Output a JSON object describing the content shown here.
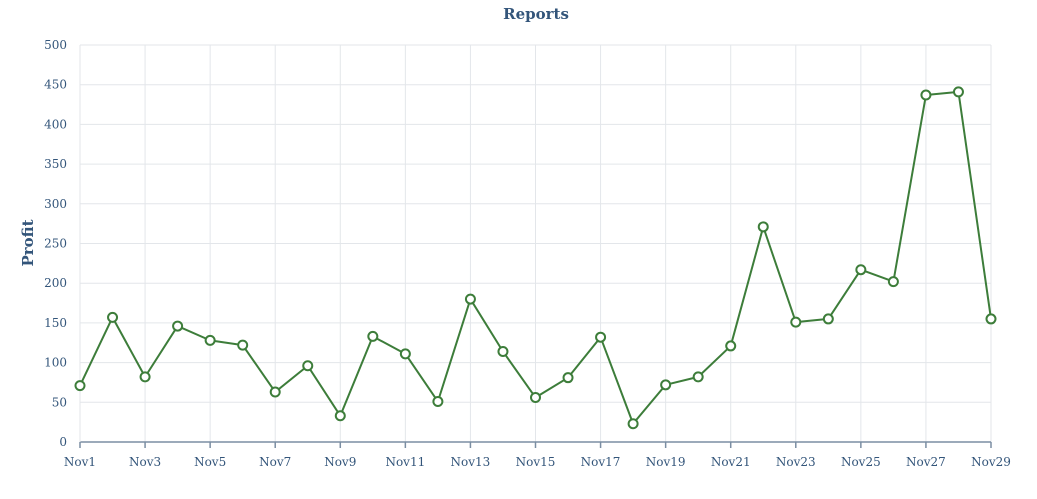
{
  "chart_data": {
    "type": "line",
    "title": "Reports",
    "xlabel": "",
    "ylabel": "Profit",
    "ylim": [
      0,
      500
    ],
    "y_ticks": [
      0,
      50,
      100,
      150,
      200,
      250,
      300,
      350,
      400,
      450,
      500
    ],
    "grid": true,
    "legend": "none",
    "colors": {
      "line": "#3d7d3a",
      "marker_fill": "#ffffff",
      "text": "#33557a",
      "grid": "#e3e6ea",
      "axis": "#7b8ea3"
    },
    "x": [
      "Nov1",
      "Nov2",
      "Nov3",
      "Nov4",
      "Nov5",
      "Nov6",
      "Nov7",
      "Nov8",
      "Nov9",
      "Nov10",
      "Nov11",
      "Nov12",
      "Nov13",
      "Nov14",
      "Nov15",
      "Nov16",
      "Nov17",
      "Nov18",
      "Nov19",
      "Nov20",
      "Nov21",
      "Nov22",
      "Nov23",
      "Nov24",
      "Nov25",
      "Nov26",
      "Nov27",
      "Nov28",
      "Nov29"
    ],
    "x_tick_labels": [
      "Nov1",
      "Nov3",
      "Nov5",
      "Nov7",
      "Nov9",
      "Nov11",
      "Nov13",
      "Nov15",
      "Nov17",
      "Nov19",
      "Nov21",
      "Nov23",
      "Nov25",
      "Nov27",
      "Nov29"
    ],
    "series": [
      {
        "values": [
          71,
          157,
          82,
          146,
          128,
          122,
          63,
          96,
          33,
          133,
          111,
          51,
          180,
          114,
          56,
          81,
          132,
          23,
          72,
          82,
          121,
          271,
          151,
          155,
          217,
          202,
          437,
          441,
          155
        ]
      }
    ]
  }
}
